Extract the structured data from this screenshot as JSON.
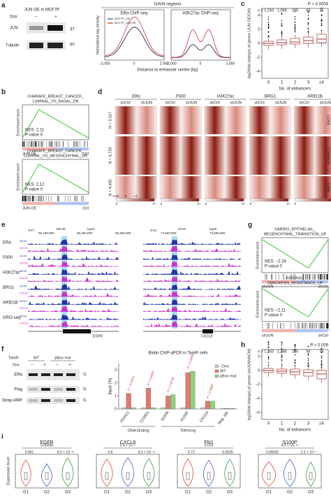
{
  "panels": {
    "a": {
      "label": "a",
      "blot_title": "JUN OE in MCF7P",
      "dox": "Dox",
      "dox_minus": "–",
      "dox_plus": "+",
      "jun": "JUN",
      "tubulin": "Tubulin",
      "mw": [
        "37",
        "50"
      ],
      "gain": "GAIN regions",
      "er": "ERα ChIP-seq",
      "h3": "H3K27ac ChIP-seq",
      "ylabel": "Normalized tag density",
      "xlabel": "Distance to enhancer centre (bp)",
      "legend": [
        "MCF7P_Ctrl",
        "MCF7P_JUN OE"
      ],
      "xticks": [
        "–2,000",
        "0",
        "2,000"
      ]
    },
    "c": {
      "label": "c",
      "p": "P = 0.0004",
      "n": [
        "n = 1,243",
        "1,288",
        "295",
        "65",
        "36"
      ],
      "ylabel": "log2(fold change) of genes (JUN OE/Ctrl)",
      "xlabel": "No. of enhancers",
      "categories": [
        "0",
        "1",
        "2",
        "3",
        "≥4"
      ],
      "ylim": [
        -5,
        5
      ],
      "yticks": [
        4,
        2,
        0,
        {
          "value": -2,
          "label": "–2"
        },
        {
          "value": -4,
          "label": "–4"
        }
      ],
      "boxes": [
        {
          "q1": -0.3,
          "median": 0,
          "q3": 0.3
        },
        {
          "q1": -0.2,
          "median": 0.1,
          "q3": 0.5
        },
        {
          "q1": -0.1,
          "median": 0.2,
          "q3": 0.7
        },
        {
          "q1": 0,
          "median": 0.4,
          "q3": 0.9
        },
        {
          "q1": 0.1,
          "median": 0.6,
          "q3": 1.3
        }
      ]
    },
    "b": {
      "label": "b",
      "gs1": "CHARAFE_BREAST_CANCER_",
      "gs1b": "LUMINAL_VS_BASAL_DN",
      "nes1": "NES: 2.21",
      "p1": "P value 0",
      "gs2": "CHARAFE_BREAST_CANCER_",
      "gs2b": "LUMINAL_VS_MESENCHYMAL_DN",
      "nes2": "NES: 2.12",
      "p2": "P value 0",
      "ylabel": "Enrichment score",
      "left": "JUN OE",
      "right": "Ctrl"
    },
    "d": {
      "label": "d",
      "markers": [
        "ERα",
        "P300",
        "H3K27ac",
        "BRG1",
        "ARID1B"
      ],
      "cond": [
        "shCtrl",
        "shJUN"
      ],
      "N": [
        "N = 3,317",
        "N = 6,729",
        "N = 4,450"
      ],
      "groups": [
        "LOSS",
        "COMMON",
        "GAIN"
      ],
      "scale": [
        "–2 kb",
        "0",
        "+2"
      ],
      "scale_ticks": [
        "0",
        "3+",
        "0",
        "5+",
        "0",
        "5+",
        "0",
        "3+",
        "0",
        "3+"
      ]
    },
    "e": {
      "label": "e",
      "tracks": [
        "ERα",
        "P300",
        "H3K27ac",
        "BRG1",
        "ARID1B",
        "GRO-seq"
      ],
      "cond": [
        "shCtrl",
        "shJUN"
      ],
      "genes": [
        "EGFR",
        "CXCL8"
      ],
      "chr1": "chr7:",
      "coords1": [
        "55,150,000",
        "55,250,000",
        "55,350,000"
      ],
      "kb1": "100 kb",
      "hg": "hg19",
      "chr2": "chr4:",
      "coords2": [
        "74,550,000",
        "74,600,000"
      ],
      "kb2": "20 kb"
    },
    "g": {
      "label": "g",
      "gs1": "SARRIO_EPITHELIAL_",
      "gs1b": "MESENCHYMAL_TRANSITION_UP",
      "nes1": "NES: –2.24",
      "p1": "P value 0",
      "gs2": "RIGGINS_",
      "gs2b": "TAMOXIFEN_RESISTANCE_UP",
      "nes2": "NES: –2.11",
      "p2": "P value 0",
      "ylabel": "Enrichment score",
      "left": "shJUN",
      "right": "shCtrl"
    },
    "f": {
      "label": "f",
      "tamr": "TamR:",
      "wt": "WT",
      "pbox": "pBox mut",
      "dox": "Dox",
      "signs": [
        "–",
        "+",
        "–",
        "+"
      ],
      "rows": [
        "ERα",
        "Flag",
        "Strep-HRP"
      ],
      "mw": [
        "75",
        "75",
        "75"
      ],
      "title": "Biotin ChIP-qPCR in TamR cells",
      "ylabel": "Input (%)",
      "ylim": [
        0,
        3.5
      ],
      "yticks": [
        0,
        1,
        2,
        3
      ],
      "categories": [
        "FOXC1",
        "CCND1",
        "EGFR",
        "S100P",
        "CXCL8",
        "Neg. site"
      ],
      "groups": [
        "DNA binding",
        "Tethering"
      ],
      "pvals": [
        "P = 0.0014",
        "P = 0.0002",
        "P = 0.9749",
        "P = 0.0009",
        "P = 0.9987"
      ],
      "series": [
        {
          "name": "–Dox",
          "color": "#c8c8c8",
          "values": [
            0.1,
            0.1,
            0.1,
            0.1,
            0.1,
            0.05
          ]
        },
        {
          "name": "WT",
          "color": "#e07a70",
          "values": [
            1.2,
            1.6,
            1.0,
            2.8,
            0.6,
            0.05
          ]
        },
        {
          "name": "pBox mut",
          "color": "#8fd17e",
          "values": [
            0.1,
            0.1,
            1.1,
            2.9,
            0.6,
            0.05
          ]
        }
      ]
    },
    "h": {
      "label": "h",
      "p": "P = 0.009",
      "n": [
        "n = 1,243",
        "1,288",
        "295",
        "65",
        "36"
      ],
      "ylabel": "log2(fold change) of genes (shJUN/shCtrl)",
      "xlabel": "No. of enhancers",
      "categories": [
        "0",
        "1",
        "2",
        "3",
        "≥4"
      ],
      "ylim": [
        -7,
        3
      ],
      "yticks": [
        2,
        0,
        {
          "value": -2,
          "label": "–2"
        },
        {
          "value": -4,
          "label": "–4"
        },
        {
          "value": -6,
          "label": "–6"
        }
      ],
      "boxes": [
        {
          "q1": -0.3,
          "median": 0,
          "q3": 0.3
        },
        {
          "q1": -0.4,
          "median": -0.1,
          "q3": 0.2
        },
        {
          "q1": -0.6,
          "median": -0.2,
          "q3": 0.2
        },
        {
          "q1": -0.8,
          "median": -0.3,
          "q3": 0.1
        },
        {
          "q1": -1.2,
          "median": -0.5,
          "q3": 0
        }
      ]
    },
    "i": {
      "label": "i",
      "ylabel": "Expression level",
      "groups": [
        "G1",
        "G2",
        "G3"
      ],
      "genes": [
        {
          "name": "EGFR",
          "top": "0.00056",
          "left": "0.091",
          "right": "9.2 × 10⁻¹⁵"
        },
        {
          "name": "CXCL8",
          "top": "2.9 × 10⁻⁵",
          "left": "0.6",
          "right": "8.3 × 10⁻¹⁵"
        },
        {
          "name": "FN1",
          "top": "0.014",
          "left": "0.72",
          "right": "0.0025"
        },
        {
          "name": "S100P",
          "top": "4.9 × 10⁻¹⁵",
          "left": "0.00025",
          "right": "2.2 × 10⁻⁷"
        }
      ]
    }
  }
}
